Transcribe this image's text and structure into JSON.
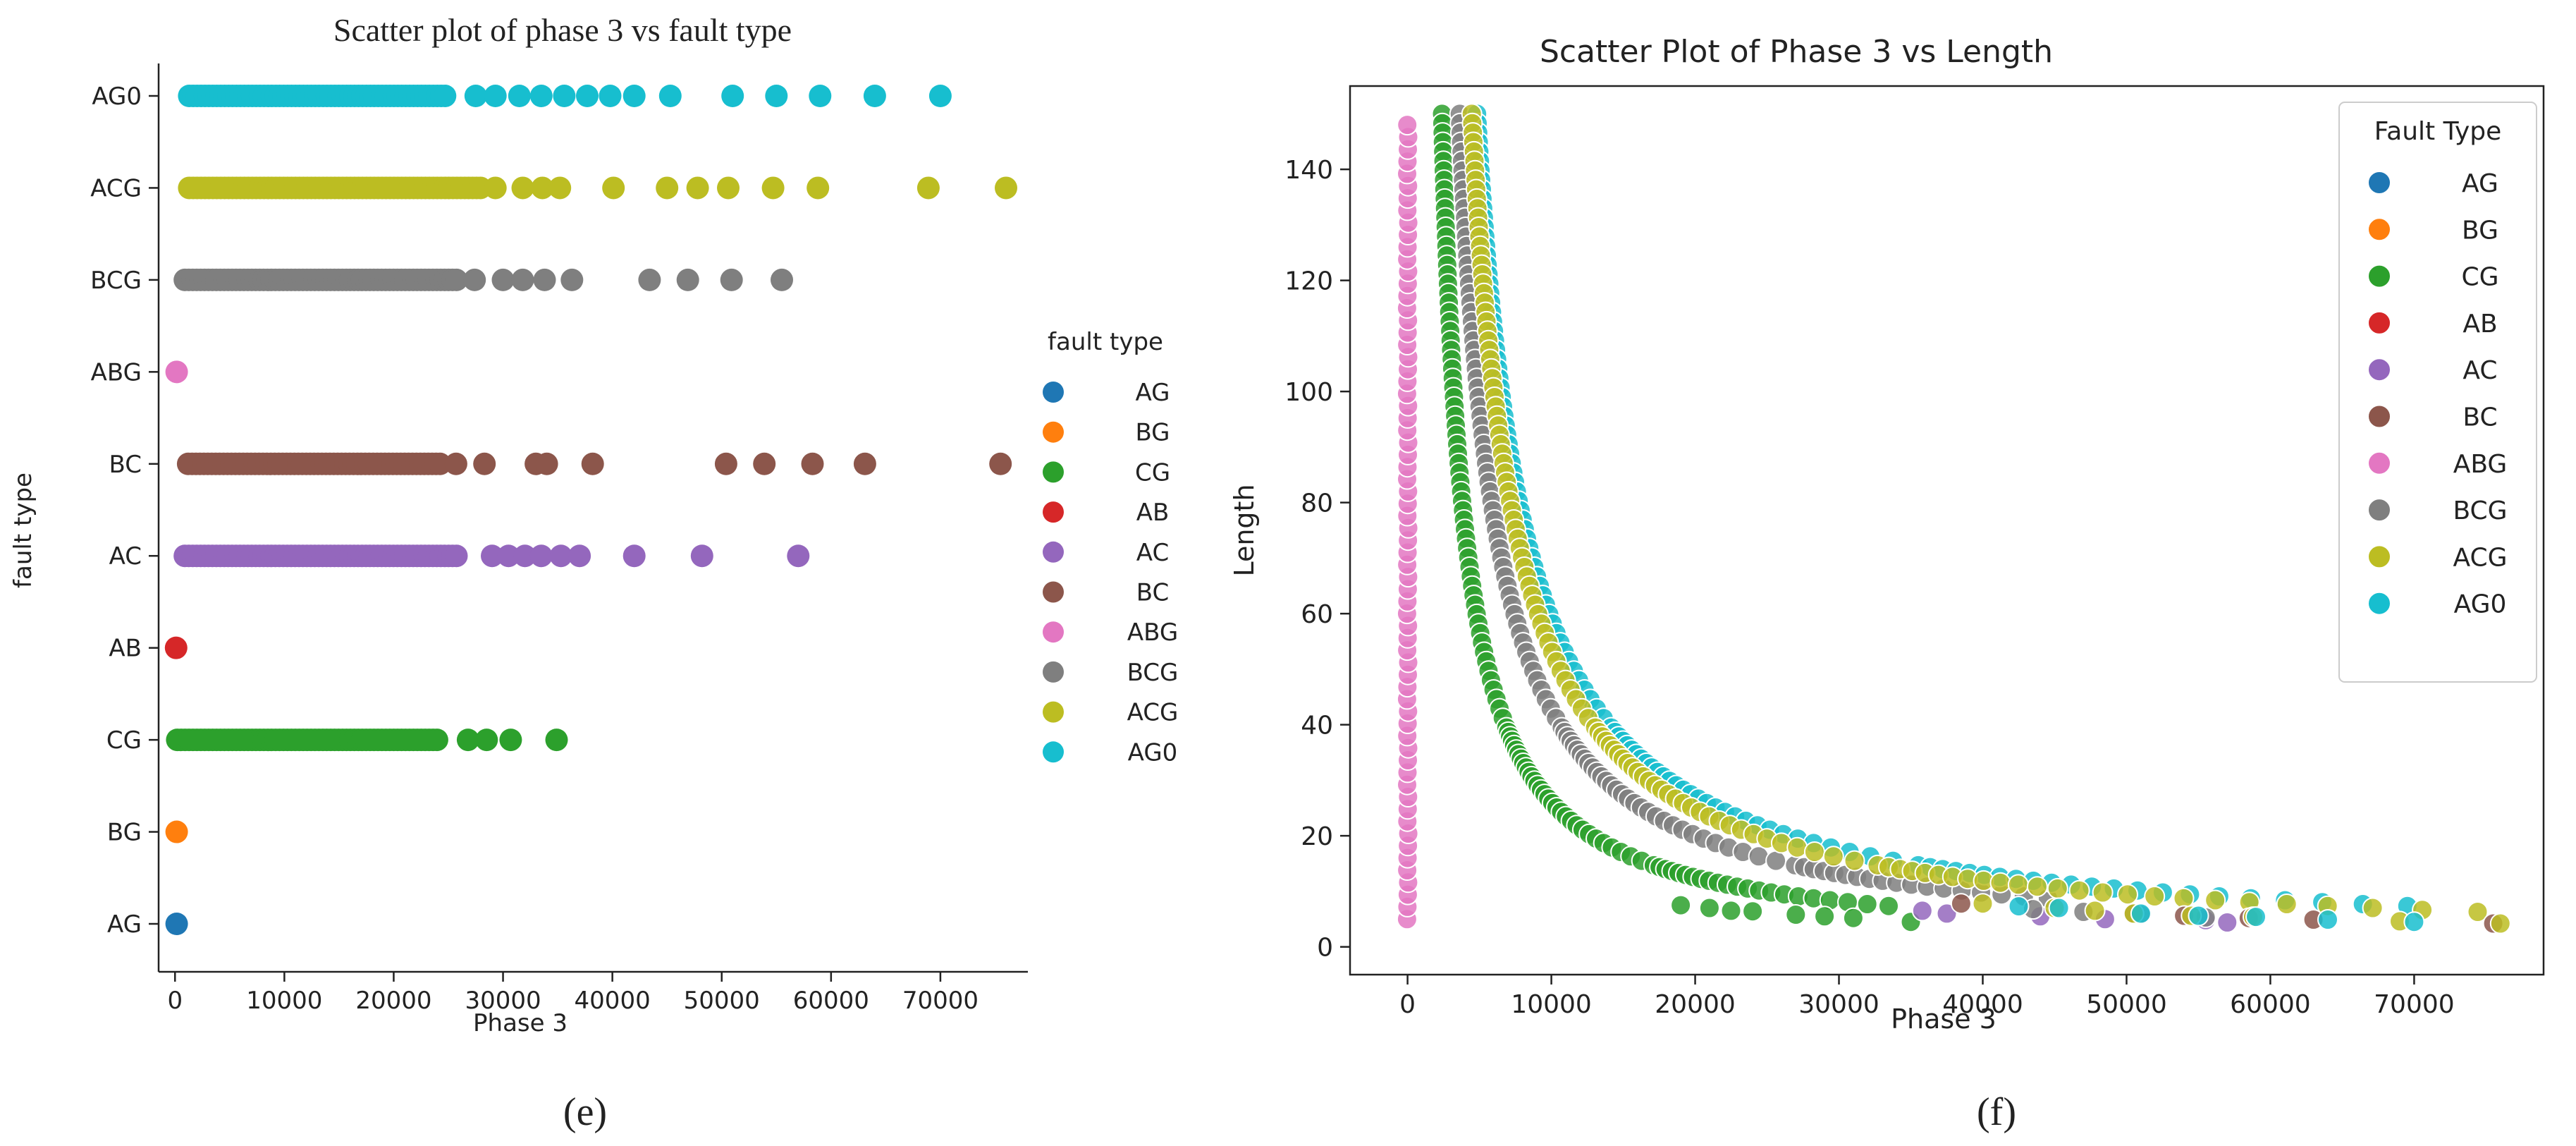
{
  "panel_e": {
    "caption": "(e)",
    "legend_title": "fault type"
  },
  "panel_f": {
    "caption": "(f)",
    "legend_title": "Fault Type"
  },
  "colors": {
    "AG": "#1f77b4",
    "BG": "#ff7f0e",
    "CG": "#2ca02c",
    "AB": "#d62728",
    "AC": "#9467bd",
    "BC": "#8c564b",
    "ABG": "#e377c2",
    "BCG": "#7f7f7f",
    "ACG": "#bcbd22",
    "AG0": "#17becf"
  },
  "chart_data": [
    {
      "type": "scatter",
      "title": "Scatter plot of phase 3 vs fault type",
      "xlabel": "Phase 3",
      "ylabel": "fault type",
      "xlim": [
        -1500,
        78000
      ],
      "xticks": [
        0,
        10000,
        20000,
        30000,
        40000,
        50000,
        60000,
        70000
      ],
      "xtick_labels": [
        "0",
        "10000",
        "20000",
        "30000",
        "40000",
        "50000",
        "60000",
        "70000"
      ],
      "categories": [
        "AG",
        "BG",
        "CG",
        "AB",
        "AC",
        "BC",
        "ABG",
        "BCG",
        "ACG",
        "AG0"
      ],
      "legend_entries": [
        "AG",
        "BG",
        "CG",
        "AB",
        "AC",
        "BC",
        "ABG",
        "BCG",
        "ACG",
        "AG0"
      ],
      "grid": false,
      "legend_position": "right",
      "series": [
        {
          "name": "AG",
          "x": [
            150
          ]
        },
        {
          "name": "BG",
          "x": [
            150
          ]
        },
        {
          "name": "CG",
          "range": [
            200,
            24000
          ],
          "x": [
            26800,
            28500,
            30700,
            34900
          ]
        },
        {
          "name": "AB",
          "x": [
            100
          ]
        },
        {
          "name": "AC",
          "range": [
            900,
            26000
          ],
          "x": [
            29000,
            30500,
            32000,
            33500,
            35300,
            37000,
            42000,
            48200,
            57000
          ]
        },
        {
          "name": "BC",
          "range": [
            1200,
            24500
          ],
          "x": [
            25700,
            28300,
            33000,
            34000,
            38200,
            50400,
            53900,
            58300,
            63100,
            75500
          ]
        },
        {
          "name": "ABG",
          "x": [
            150
          ]
        },
        {
          "name": "BCG",
          "range": [
            900,
            26000
          ],
          "x": [
            27400,
            30000,
            31800,
            33800,
            36300,
            43400,
            46900,
            50900,
            55500
          ]
        },
        {
          "name": "ACG",
          "range": [
            1300,
            28000
          ],
          "x": [
            29300,
            31800,
            33600,
            35200,
            40100,
            45000,
            47800,
            50600,
            54700,
            58800,
            68900,
            76000
          ]
        },
        {
          "name": "AG0",
          "range": [
            1300,
            25000
          ],
          "x": [
            27500,
            29300,
            31500,
            33500,
            35600,
            37700,
            39800,
            42000,
            45300,
            51000,
            55000,
            59000,
            64000,
            70000
          ]
        }
      ]
    },
    {
      "type": "scatter",
      "title": "Scatter Plot of Phase 3 vs Length",
      "xlabel": "Phase 3",
      "ylabel": "Length",
      "xlim": [
        -4000,
        79000
      ],
      "ylim": [
        -5,
        155
      ],
      "xticks": [
        0,
        10000,
        20000,
        30000,
        40000,
        50000,
        60000,
        70000
      ],
      "xtick_labels": [
        "0",
        "10000",
        "20000",
        "30000",
        "40000",
        "50000",
        "60000",
        "70000"
      ],
      "yticks": [
        0,
        20,
        40,
        60,
        80,
        100,
        120,
        140
      ],
      "ytick_labels": [
        "0",
        "20",
        "40",
        "60",
        "80",
        "100",
        "120",
        "140"
      ],
      "legend_entries": [
        "AG",
        "BG",
        "CG",
        "AB",
        "AC",
        "BC",
        "ABG",
        "BCG",
        "ACG",
        "AG0"
      ],
      "grid": false,
      "legend_position": "top-right",
      "curves": [
        {
          "name": "ABG",
          "x_const": 0,
          "length_range": [
            5,
            150
          ]
        },
        {
          "name": "CG",
          "k": 240000,
          "x_offset": 800,
          "x_max": 35000
        },
        {
          "name": "BCG",
          "k": 380000,
          "x_offset": 1100,
          "x_max": 45000
        },
        {
          "name": "AG0",
          "k": 500000,
          "x_offset": 1500,
          "x_max": 70000
        },
        {
          "name": "ACG",
          "k": 460000,
          "x_offset": 1400,
          "x_max": 76000
        }
      ],
      "series": [
        {
          "name": "CG",
          "x": [
            19000,
            21000,
            22500,
            24000,
            27000,
            29000,
            31000,
            35000
          ],
          "y": [
            7.5,
            7,
            6.5,
            6.4,
            5.8,
            5.5,
            5.2,
            4.5
          ]
        },
        {
          "name": "AC",
          "x": [
            35800,
            37500,
            44000,
            48500,
            55500,
            57000
          ],
          "y": [
            6.5,
            6,
            5.5,
            5,
            4.8,
            4.4
          ]
        },
        {
          "name": "BC",
          "x": [
            38500,
            50500,
            54000,
            58500,
            63000,
            75500
          ],
          "y": [
            7.8,
            6,
            5.6,
            5.2,
            4.9,
            4.2
          ]
        },
        {
          "name": "BCG",
          "x": [
            43500,
            47000,
            51000,
            55500
          ],
          "y": [
            6.8,
            6.3,
            5.8,
            5.3
          ]
        },
        {
          "name": "ACG",
          "x": [
            40000,
            45000,
            47800,
            50500,
            54500,
            58800,
            69000,
            76000
          ],
          "y": [
            7.8,
            7,
            6.5,
            6,
            5.6,
            5.4,
            4.6,
            4.2
          ]
        },
        {
          "name": "AG0",
          "x": [
            42500,
            45300,
            51000,
            55000,
            59000,
            64000,
            70000
          ],
          "y": [
            7.3,
            7,
            6,
            5.6,
            5.4,
            4.9,
            4.5
          ]
        }
      ]
    }
  ]
}
